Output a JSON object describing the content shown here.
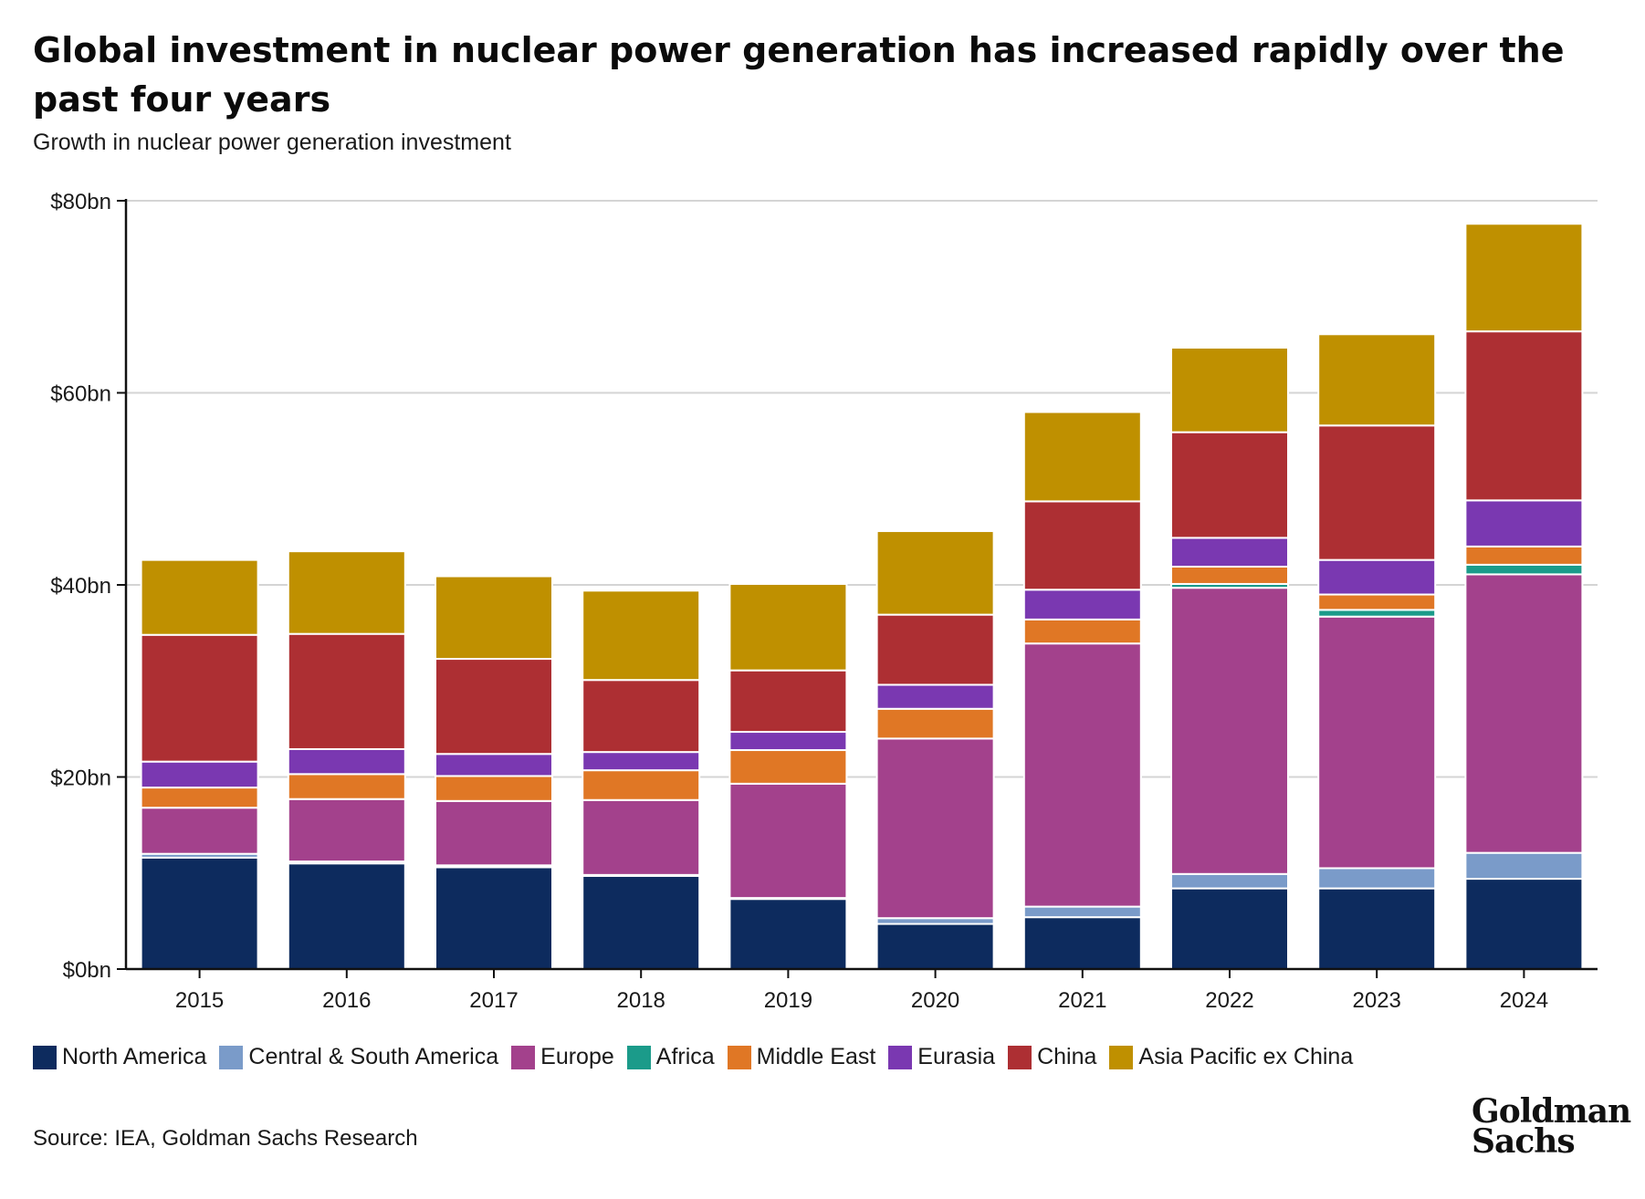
{
  "title": "Global investment in nuclear power generation has increased rapidly over the past four years",
  "subtitle": "Growth in nuclear power generation investment",
  "source": "Source: IEA, Goldman Sachs Research",
  "logo": [
    "Goldman",
    "Sachs"
  ],
  "chart_data": {
    "type": "bar",
    "stacked": true,
    "categories": [
      "2015",
      "2016",
      "2017",
      "2018",
      "2019",
      "2020",
      "2021",
      "2022",
      "2023",
      "2024"
    ],
    "ylim": [
      0,
      80
    ],
    "yticks": [
      0,
      20,
      40,
      60,
      80
    ],
    "ytick_labels": [
      "$0bn",
      "$20bn",
      "$40bn",
      "$60bn",
      "$80bn"
    ],
    "grid": true,
    "legend_position": "bottom",
    "series": [
      {
        "name": "North America",
        "color": "#0d2b5e",
        "values": [
          11.6,
          11.0,
          10.6,
          9.7,
          7.3,
          4.7,
          5.4,
          8.4,
          8.4,
          9.4
        ]
      },
      {
        "name": "Central & South America",
        "color": "#7a9bc9",
        "values": [
          0.4,
          0.2,
          0.2,
          0.1,
          0.1,
          0.6,
          1.1,
          1.5,
          2.1,
          2.7
        ]
      },
      {
        "name": "Europe",
        "color": "#a3418c",
        "values": [
          4.8,
          6.5,
          6.7,
          7.8,
          11.9,
          18.7,
          27.4,
          29.8,
          26.2,
          29.0
        ]
      },
      {
        "name": "Africa",
        "color": "#1b9b8a",
        "values": [
          0,
          0,
          0,
          0,
          0,
          0,
          0,
          0.4,
          0.7,
          1.0
        ]
      },
      {
        "name": "Middle East",
        "color": "#e07725",
        "values": [
          2.1,
          2.6,
          2.6,
          3.1,
          3.5,
          3.1,
          2.5,
          1.8,
          1.6,
          1.9
        ]
      },
      {
        "name": "Eurasia",
        "color": "#7a38b1",
        "values": [
          2.7,
          2.6,
          2.3,
          1.9,
          1.9,
          2.5,
          3.1,
          3.0,
          3.6,
          4.8
        ]
      },
      {
        "name": "China",
        "color": "#ad2f33",
        "values": [
          13.2,
          12.0,
          9.9,
          7.5,
          6.4,
          7.3,
          9.2,
          11.0,
          14.0,
          17.6
        ]
      },
      {
        "name": "Asia Pacific ex China",
        "color": "#bf9000",
        "values": [
          7.8,
          8.6,
          8.6,
          9.3,
          9.0,
          8.7,
          9.3,
          8.8,
          9.5,
          11.2
        ]
      }
    ]
  }
}
